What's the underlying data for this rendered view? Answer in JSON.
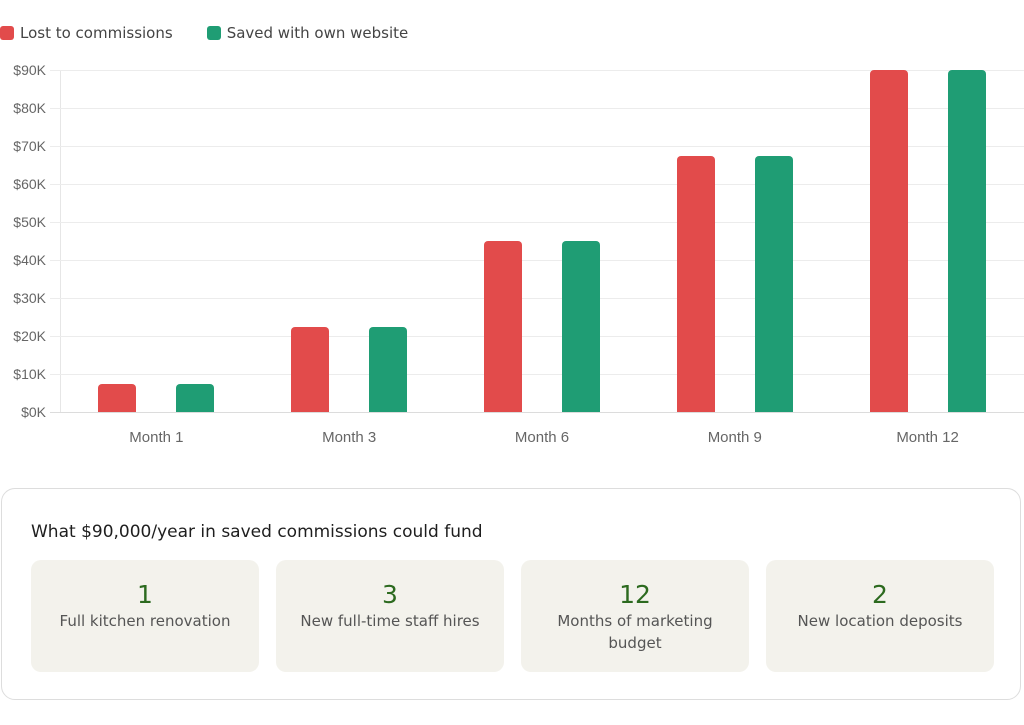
{
  "legend": [
    {
      "label": "Lost to commissions",
      "color": "#e24b4b"
    },
    {
      "label": "Saved with own website",
      "color": "#1f9d74"
    }
  ],
  "chart_data": {
    "type": "bar",
    "title": "",
    "xlabel": "",
    "ylabel": "",
    "categories": [
      "Month 1",
      "Month 3",
      "Month 6",
      "Month 9",
      "Month 12"
    ],
    "series": [
      {
        "name": "Lost to commissions",
        "color": "#e24b4b",
        "values": [
          7500,
          22500,
          45000,
          67500,
          90000
        ]
      },
      {
        "name": "Saved with own website",
        "color": "#1f9d74",
        "values": [
          7500,
          22500,
          45000,
          67500,
          90000
        ]
      }
    ],
    "ylim": [
      0,
      90000
    ],
    "yticks": [
      "$0K",
      "$10K",
      "$20K",
      "$30K",
      "$40K",
      "$50K",
      "$60K",
      "$70K",
      "$80K",
      "$90K"
    ],
    "grid": true,
    "legend_position": "top-left"
  },
  "summary": {
    "title": "What $90,000/year in saved commissions could fund",
    "tiles": [
      {
        "number": "1",
        "label": "Full kitchen renovation"
      },
      {
        "number": "3",
        "label": "New full-time staff hires"
      },
      {
        "number": "12",
        "label": "Months of marketing budget"
      },
      {
        "number": "2",
        "label": "New location deposits"
      }
    ]
  }
}
